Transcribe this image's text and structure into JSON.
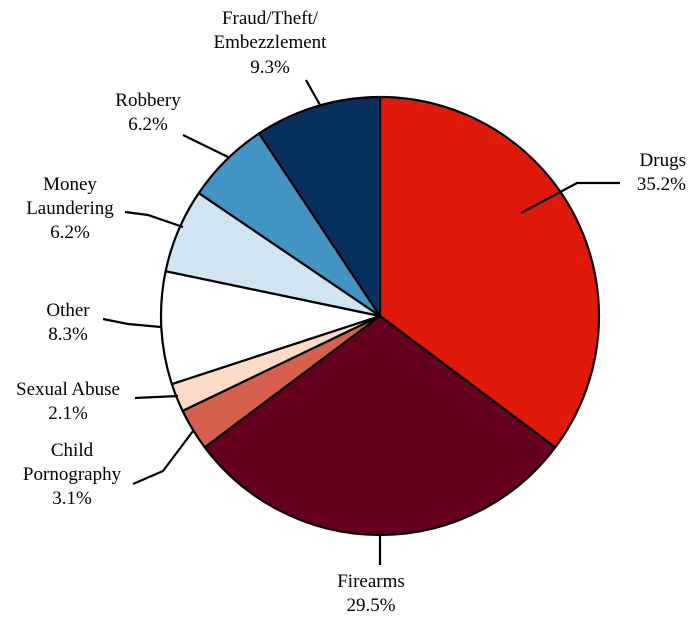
{
  "chart_data": {
    "type": "pie",
    "slices": [
      {
        "label": "Drugs",
        "value": 35.2,
        "display": "35.2%",
        "color": "#e01a0a"
      },
      {
        "label": "Firearms",
        "value": 29.5,
        "display": "29.5%",
        "color": "#65001f"
      },
      {
        "label": "Child Pornography",
        "value": 3.1,
        "display": "3.1%",
        "color": "#d6604d"
      },
      {
        "label": "Sexual Abuse",
        "value": 2.1,
        "display": "2.1%",
        "color": "#fddbc7"
      },
      {
        "label": "Other",
        "value": 8.3,
        "display": "8.3%",
        "color": "#ffffff"
      },
      {
        "label": "Money Laundering",
        "value": 6.2,
        "display": "6.2%",
        "color": "#d1e5f0"
      },
      {
        "label": "Robbery",
        "value": 6.2,
        "display": "6.2%",
        "color": "#4393c3"
      },
      {
        "label": "Fraud/Theft/Embezzlement",
        "value": 9.3,
        "display": "9.3%",
        "color": "#08305f"
      }
    ],
    "start": "12 o'clock",
    "direction": "clockwise"
  }
}
